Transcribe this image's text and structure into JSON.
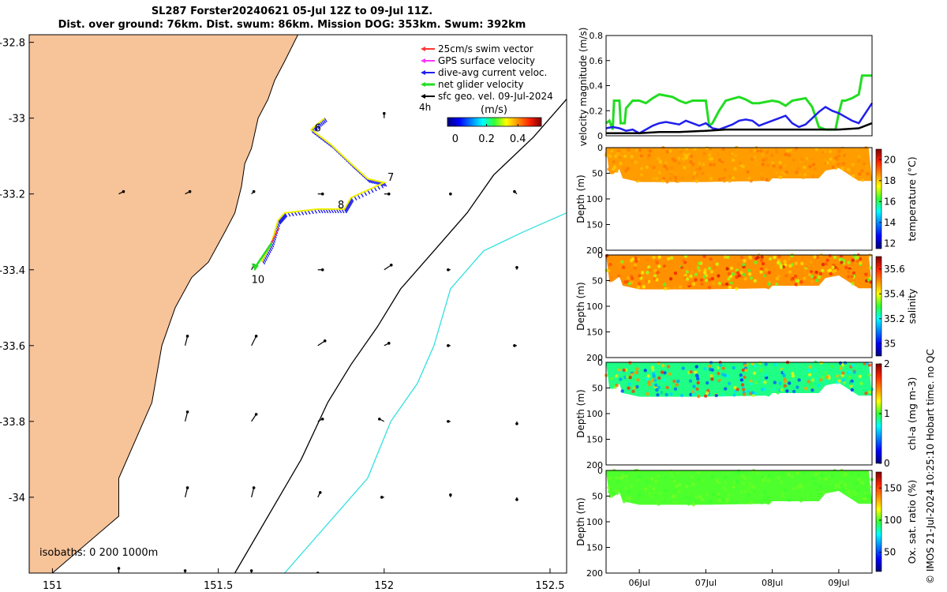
{
  "title": {
    "line1": "SL287 Forster20240621 05-Jul 12Z to 09-Jul 11Z.",
    "line2": "Dist. over ground: 76km. Dist. swum: 86km. Mission DOG: 353km. Swum: 392km"
  },
  "stamp": "© IMOS 21-Jul-2024 10:25:10 Hobart time. no QC",
  "colors": {
    "land": "#f7c399",
    "isobath200": "#000000",
    "isobath1000": "#33e0e0",
    "swim": "#ff3333",
    "gps": "#ff33ff",
    "current": "#1f1fee",
    "net": "#22dd22",
    "sfcgeo": "#000000",
    "track": "#f0f000"
  },
  "chart_data": [
    {
      "type": "map",
      "name": "glider track map",
      "xlim": [
        150.93,
        152.55
      ],
      "ylim": [
        -34.2,
        -32.78
      ],
      "xticks": [
        151,
        151.5,
        152,
        152.5
      ],
      "xtick_labels": [
        "151",
        "151.5",
        "152",
        "152.5"
      ],
      "yticks": [
        -32.8,
        -33,
        -33.2,
        -33.4,
        -33.6,
        -33.8,
        -34
      ],
      "ytick_labels": [
        "-32.8",
        "-33",
        "-33.2",
        "-33.4",
        "-33.6",
        "-33.8",
        "-34"
      ],
      "legend": [
        {
          "key": "swim",
          "label": "25cm/s swim vector"
        },
        {
          "key": "gps",
          "label": "GPS surface velocity"
        },
        {
          "key": "current",
          "label": "dive-avg current veloc."
        },
        {
          "key": "net",
          "label": "net glider velocity"
        },
        {
          "key": "sfcgeo",
          "label": "sfc geo. vel. 09-Jul-2024"
        }
      ],
      "time_step_label": "4h",
      "colorbar": {
        "label": "(m/s)",
        "range": [
          -0.05,
          0.55
        ],
        "ticks": [
          0,
          0.2,
          0.4
        ],
        "tick_labels": [
          "0",
          "0.2",
          "0.4"
        ]
      },
      "isobath_label": "isobaths: 0   200  1000m",
      "track": [
        [
          151.82,
          -33.0
        ],
        [
          151.78,
          -33.03
        ],
        [
          151.84,
          -33.07
        ],
        [
          151.9,
          -33.12
        ],
        [
          151.95,
          -33.16
        ],
        [
          152.0,
          -33.17
        ],
        [
          151.9,
          -33.21
        ],
        [
          151.88,
          -33.24
        ],
        [
          151.8,
          -33.24
        ],
        [
          151.7,
          -33.25
        ],
        [
          151.68,
          -33.27
        ],
        [
          151.66,
          -33.33
        ],
        [
          151.63,
          -33.38
        ]
      ],
      "day_labels": [
        {
          "text": "6",
          "lon": 151.79,
          "lat": -33.035
        },
        {
          "text": "7",
          "lon": 152.01,
          "lat": -33.165
        },
        {
          "text": "8",
          "lon": 151.86,
          "lat": -33.238
        },
        {
          "text": "10",
          "lon": 151.6,
          "lat": -33.435
        }
      ],
      "net_arrow": {
        "from": [
          151.66,
          -33.33
        ],
        "to": [
          151.61,
          -33.395
        ]
      },
      "sfc_geo_vectors": [
        {
          "lon": 152.0,
          "lat": -33.0,
          "u": 0,
          "v": 0.01
        },
        {
          "lon": 151.2,
          "lat": -33.2,
          "u": 0.01,
          "v": 0.005
        },
        {
          "lon": 151.4,
          "lat": -33.2,
          "u": 0.01,
          "v": 0.005
        },
        {
          "lon": 151.6,
          "lat": -33.2,
          "u": 0.005,
          "v": 0.005
        },
        {
          "lon": 151.8,
          "lat": -33.2,
          "u": 0.01,
          "v": 0
        },
        {
          "lon": 152.0,
          "lat": -33.2,
          "u": 0.01,
          "v": 0
        },
        {
          "lon": 152.2,
          "lat": -33.2,
          "u": 0,
          "v": 0
        },
        {
          "lon": 152.4,
          "lat": -33.2,
          "u": -0.005,
          "v": 0.005
        },
        {
          "lon": 151.6,
          "lat": -33.4,
          "u": 0.005,
          "v": 0.01
        },
        {
          "lon": 151.8,
          "lat": -33.4,
          "u": 0.01,
          "v": 0
        },
        {
          "lon": 152.0,
          "lat": -33.4,
          "u": 0.015,
          "v": 0.01
        },
        {
          "lon": 152.2,
          "lat": -33.4,
          "u": -0.005,
          "v": 0
        },
        {
          "lon": 152.4,
          "lat": -33.4,
          "u": 0,
          "v": 0.005
        },
        {
          "lon": 151.4,
          "lat": -33.6,
          "u": 0.005,
          "v": 0.02
        },
        {
          "lon": 151.6,
          "lat": -33.6,
          "u": 0.01,
          "v": 0.02
        },
        {
          "lon": 151.8,
          "lat": -33.6,
          "u": 0.015,
          "v": 0.01
        },
        {
          "lon": 152.0,
          "lat": -33.6,
          "u": 0.01,
          "v": 0.005
        },
        {
          "lon": 152.2,
          "lat": -33.6,
          "u": -0.005,
          "v": 0
        },
        {
          "lon": 152.4,
          "lat": -33.6,
          "u": -0.005,
          "v": 0
        },
        {
          "lon": 151.4,
          "lat": -33.8,
          "u": 0.005,
          "v": 0.02
        },
        {
          "lon": 151.6,
          "lat": -33.8,
          "u": 0.01,
          "v": 0.015
        },
        {
          "lon": 151.8,
          "lat": -33.8,
          "u": 0.01,
          "v": 0.005
        },
        {
          "lon": 152.0,
          "lat": -33.8,
          "u": -0.01,
          "v": 0.005
        },
        {
          "lon": 152.2,
          "lat": -33.8,
          "u": -0.005,
          "v": 0
        },
        {
          "lon": 152.4,
          "lat": -33.8,
          "u": 0,
          "v": -0.005
        },
        {
          "lon": 151.4,
          "lat": -34.0,
          "u": 0.005,
          "v": 0.02
        },
        {
          "lon": 151.6,
          "lat": -34.0,
          "u": 0.005,
          "v": 0.02
        },
        {
          "lon": 151.8,
          "lat": -34.0,
          "u": 0.005,
          "v": 0.01
        },
        {
          "lon": 152.0,
          "lat": -34.0,
          "u": -0.005,
          "v": 0
        },
        {
          "lon": 152.2,
          "lat": -34.0,
          "u": 0,
          "v": 0.005
        },
        {
          "lon": 152.4,
          "lat": -34.0,
          "u": 0,
          "v": -0.005
        },
        {
          "lon": 151.2,
          "lat": -34.2,
          "u": 0,
          "v": 0.01
        },
        {
          "lon": 151.4,
          "lat": -34.2,
          "u": 0,
          "v": 0.005
        },
        {
          "lon": 151.6,
          "lat": -34.2,
          "u": 0,
          "v": 0.005
        },
        {
          "lon": 151.8,
          "lat": -34.2,
          "u": 0,
          "v": 0
        }
      ],
      "coast": [
        [
          151.0,
          -34.2
        ],
        [
          151.2,
          -34.05
        ],
        [
          151.2,
          -33.95
        ],
        [
          151.25,
          -33.85
        ],
        [
          151.3,
          -33.75
        ],
        [
          151.33,
          -33.6
        ],
        [
          151.37,
          -33.5
        ],
        [
          151.42,
          -33.42
        ],
        [
          151.47,
          -33.38
        ],
        [
          151.52,
          -33.3
        ],
        [
          151.55,
          -33.25
        ],
        [
          151.57,
          -33.18
        ],
        [
          151.58,
          -33.12
        ],
        [
          151.6,
          -33.08
        ],
        [
          151.62,
          -33.0
        ],
        [
          151.65,
          -32.95
        ],
        [
          151.67,
          -32.9
        ],
        [
          151.7,
          -32.85
        ],
        [
          151.74,
          -32.78
        ]
      ],
      "isobath_200": [
        [
          151.55,
          -34.2
        ],
        [
          151.75,
          -33.9
        ],
        [
          151.83,
          -33.75
        ],
        [
          151.9,
          -33.65
        ],
        [
          151.98,
          -33.55
        ],
        [
          152.05,
          -33.45
        ],
        [
          152.15,
          -33.35
        ],
        [
          152.25,
          -33.25
        ],
        [
          152.33,
          -33.15
        ],
        [
          152.45,
          -33.05
        ],
        [
          152.55,
          -32.95
        ]
      ],
      "isobath_1000": [
        [
          151.7,
          -34.2
        ],
        [
          151.95,
          -33.95
        ],
        [
          152.02,
          -33.8
        ],
        [
          152.1,
          -33.7
        ],
        [
          152.15,
          -33.6
        ],
        [
          152.2,
          -33.45
        ],
        [
          152.3,
          -33.35
        ],
        [
          152.42,
          -33.3
        ],
        [
          152.55,
          -33.25
        ]
      ]
    },
    {
      "type": "line",
      "name": "velocity magnitude",
      "ylabel": "velocity magnitude (m/s)",
      "ylim": [
        0,
        0.8
      ],
      "yticks": [
        0,
        0.2,
        0.4,
        0.6,
        0.8
      ],
      "ytick_labels": [
        "0",
        "0.2",
        "0.4",
        "0.6",
        "0.8"
      ],
      "xlim": [
        5.5,
        9.5
      ],
      "series": [
        {
          "name": "net glider velocity",
          "key": "net",
          "x": [
            5.5,
            5.55,
            5.6,
            5.62,
            5.7,
            5.72,
            5.78,
            5.8,
            5.9,
            6.0,
            6.1,
            6.2,
            6.3,
            6.5,
            6.6,
            6.7,
            6.8,
            7.0,
            7.05,
            7.1,
            7.2,
            7.3,
            7.5,
            7.6,
            7.7,
            7.8,
            8.0,
            8.1,
            8.2,
            8.3,
            8.4,
            8.5,
            8.6,
            8.7,
            8.8,
            8.95,
            9.0,
            9.05,
            9.1,
            9.2,
            9.3,
            9.35,
            9.45,
            9.5
          ],
          "values": [
            0.1,
            0.12,
            0.05,
            0.28,
            0.28,
            0.1,
            0.1,
            0.22,
            0.28,
            0.28,
            0.26,
            0.3,
            0.33,
            0.31,
            0.28,
            0.26,
            0.28,
            0.28,
            0.08,
            0.1,
            0.2,
            0.28,
            0.31,
            0.29,
            0.26,
            0.26,
            0.28,
            0.27,
            0.24,
            0.28,
            0.29,
            0.3,
            0.23,
            0.07,
            0.05,
            0.05,
            0.18,
            0.28,
            0.28,
            0.3,
            0.33,
            0.48,
            0.48,
            0.48
          ]
        },
        {
          "name": "dive-avg current veloc.",
          "key": "current",
          "x": [
            5.5,
            5.6,
            5.7,
            5.8,
            5.9,
            6.0,
            6.1,
            6.2,
            6.3,
            6.4,
            6.5,
            6.6,
            6.7,
            6.8,
            6.9,
            7.0,
            7.1,
            7.2,
            7.3,
            7.4,
            7.5,
            7.6,
            7.7,
            7.8,
            7.9,
            8.0,
            8.1,
            8.2,
            8.3,
            8.4,
            8.5,
            8.6,
            8.7,
            8.8,
            8.9,
            9.0,
            9.1,
            9.2,
            9.3,
            9.4,
            9.5
          ],
          "values": [
            0.06,
            0.07,
            0.06,
            0.04,
            0.05,
            0.02,
            0.05,
            0.08,
            0.1,
            0.11,
            0.1,
            0.09,
            0.12,
            0.1,
            0.08,
            0.1,
            0.06,
            0.05,
            0.07,
            0.09,
            0.12,
            0.13,
            0.12,
            0.08,
            0.1,
            0.12,
            0.14,
            0.16,
            0.1,
            0.07,
            0.09,
            0.14,
            0.19,
            0.23,
            0.2,
            0.18,
            0.15,
            0.12,
            0.1,
            0.18,
            0.26
          ]
        },
        {
          "name": "sfc geo. vel.",
          "key": "sfcgeo",
          "x": [
            5.5,
            5.8,
            6.0,
            6.3,
            6.6,
            7.0,
            7.3,
            7.6,
            8.0,
            8.3,
            8.6,
            9.0,
            9.3,
            9.5
          ],
          "values": [
            0.02,
            0.02,
            0.02,
            0.03,
            0.03,
            0.04,
            0.05,
            0.05,
            0.05,
            0.05,
            0.05,
            0.05,
            0.06,
            0.1
          ]
        }
      ]
    },
    {
      "type": "heatmap",
      "name": "temperature section",
      "ylabel": "Depth (m)",
      "ylim": [
        200,
        0
      ],
      "yticks": [
        0,
        50,
        100,
        150,
        200
      ],
      "ytick_labels": [
        "0",
        "50",
        "100",
        "150",
        "200"
      ],
      "colorbar": {
        "label": "temperature (°C)",
        "range": [
          11.5,
          21
        ],
        "ticks": [
          12,
          14,
          16,
          18,
          20
        ],
        "tick_labels": [
          "12",
          "14",
          "16",
          "18",
          "20"
        ]
      },
      "bottom_depth_profile": {
        "x": [
          5.5,
          5.6,
          5.7,
          5.75,
          6.0,
          7.0,
          7.9,
          7.95,
          8.0,
          8.7,
          8.8,
          9.0,
          9.3,
          9.5
        ],
        "depth": [
          50,
          52,
          42,
          60,
          67,
          67,
          65,
          67,
          60,
          60,
          45,
          40,
          65,
          65
        ]
      },
      "value_range": [
        18,
        19
      ],
      "dominant_value": 18.5
    },
    {
      "type": "heatmap",
      "name": "salinity section",
      "ylabel": "Depth (m)",
      "ylim": [
        200,
        0
      ],
      "yticks": [
        0,
        50,
        100,
        150,
        200
      ],
      "ytick_labels": [
        "0",
        "50",
        "100",
        "150",
        "200"
      ],
      "colorbar": {
        "label": "salinity",
        "range": [
          34.9,
          35.7
        ],
        "ticks": [
          35,
          35.2,
          35.4,
          35.6
        ],
        "tick_labels": [
          "35",
          "35.2",
          "35.4",
          "35.6"
        ]
      },
      "value_range": [
        35.3,
        35.65
      ],
      "dominant_value": 35.5
    },
    {
      "type": "heatmap",
      "name": "chlorophyll-a section",
      "ylabel": "Depth (m)",
      "ylim": [
        200,
        0
      ],
      "yticks": [
        0,
        50,
        100,
        150,
        200
      ],
      "ytick_labels": [
        "0",
        "50",
        "100",
        "150",
        "200"
      ],
      "colorbar": {
        "label": "chl-a (mg m-3)",
        "range": [
          0,
          2
        ],
        "ticks": [
          0,
          1,
          2
        ],
        "tick_labels": [
          "0",
          "1",
          "2"
        ]
      },
      "value_range": [
        0.3,
        1.8
      ],
      "dominant_value": 0.9
    },
    {
      "type": "heatmap",
      "name": "oxygen saturation section",
      "ylabel": "Depth (m)",
      "ylim": [
        200,
        0
      ],
      "yticks": [
        0,
        50,
        100,
        150,
        200
      ],
      "ytick_labels": [
        "0",
        "50",
        "100",
        "150",
        "200"
      ],
      "colorbar": {
        "label": "Ox. sat. ratio (%)",
        "range": [
          20,
          175
        ],
        "ticks": [
          50,
          100,
          150
        ],
        "tick_labels": [
          "50",
          "100",
          "150"
        ]
      },
      "value_range": [
        98,
        104
      ],
      "dominant_value": 100
    },
    {
      "type": "axis",
      "name": "time axis",
      "xlim": [
        5.5,
        9.5
      ],
      "xticks": [
        6,
        7,
        8,
        9
      ],
      "xtick_labels": [
        "06Jul",
        "07Jul",
        "08Jul",
        "09Jul"
      ]
    }
  ]
}
